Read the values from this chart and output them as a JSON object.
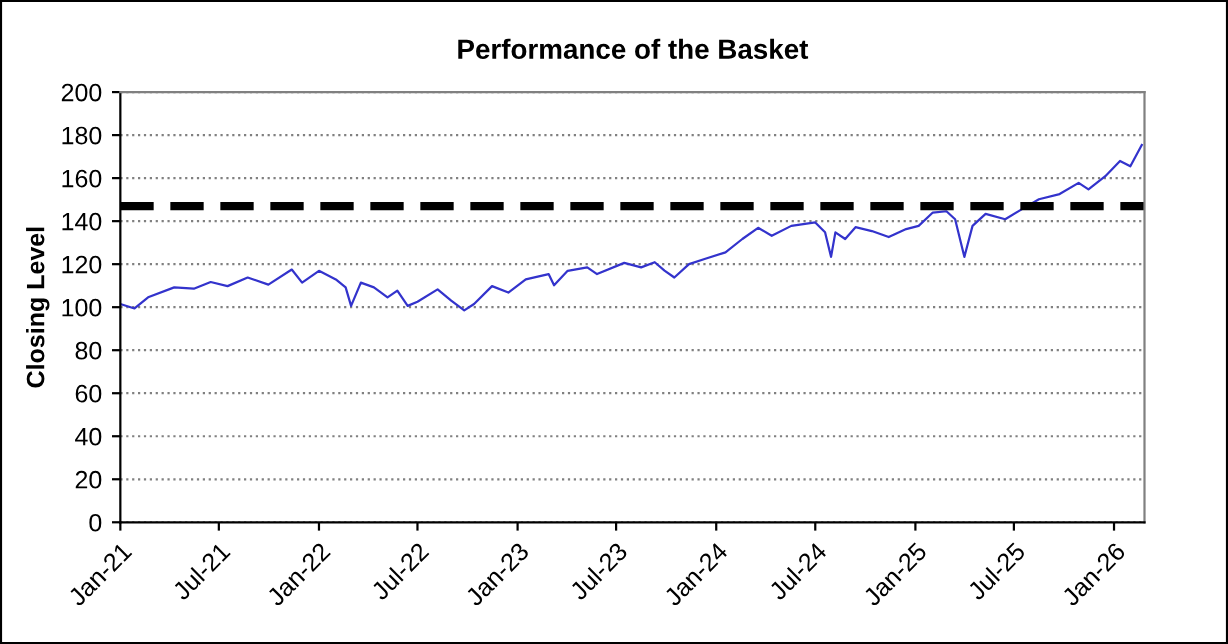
{
  "chart_data": {
    "type": "line",
    "title": "Performance of the Basket",
    "ylabel": "Closing Level",
    "x": [
      "2021-01-01",
      "2021-01-27",
      "2021-02-21",
      "2021-04-10",
      "2021-05-16",
      "2021-06-16",
      "2021-07-17",
      "2021-08-23",
      "2021-09-30",
      "2021-11-12",
      "2021-12-01",
      "2022-01-01",
      "2022-02-01",
      "2022-02-19",
      "2022-03-01",
      "2022-03-19",
      "2022-04-12",
      "2022-05-07",
      "2022-05-25",
      "2022-06-13",
      "2022-07-01",
      "2022-08-07",
      "2022-09-01",
      "2022-09-25",
      "2022-10-13",
      "2022-11-15",
      "2022-12-15",
      "2023-01-16",
      "2023-02-27",
      "2023-03-09",
      "2023-04-03",
      "2023-05-09",
      "2023-05-27",
      "2023-07-16",
      "2023-08-16",
      "2023-09-10",
      "2023-09-28",
      "2023-10-16",
      "2023-11-12",
      "2023-12-12",
      "2024-01-18",
      "2024-02-18",
      "2024-03-18",
      "2024-04-12",
      "2024-05-18",
      "2024-07-01",
      "2024-07-19",
      "2024-07-30",
      "2024-08-07",
      "2024-08-25",
      "2024-09-13",
      "2024-10-13",
      "2024-11-13",
      "2024-12-15",
      "2025-01-07",
      "2025-02-02",
      "2025-02-27",
      "2025-03-15",
      "2025-04-01",
      "2025-04-16",
      "2025-05-10",
      "2025-06-15",
      "2025-07-22",
      "2025-08-16",
      "2025-09-23",
      "2025-10-28",
      "2025-11-15",
      "2025-12-16",
      "2026-01-12",
      "2026-01-31",
      "2026-02-21"
    ],
    "series": [
      {
        "color": "#3333cc",
        "values": [
          101.5,
          99.4,
          104.6,
          109.2,
          108.6,
          111.7,
          109.8,
          113.8,
          110.5,
          117.5,
          111.4,
          116.9,
          112.9,
          109.2,
          100.6,
          111.4,
          109.2,
          104.6,
          107.7,
          100.6,
          102.5,
          108.3,
          103.1,
          98.5,
          101.5,
          109.8,
          106.8,
          112.9,
          115.4,
          110.2,
          116.9,
          118.5,
          115.4,
          120.6,
          118.5,
          120.9,
          117,
          113.8,
          120,
          122.5,
          125.5,
          131.7,
          136.9,
          133.2,
          137.8,
          139.4,
          134.8,
          123.4,
          134.8,
          131.7,
          137.2,
          135.4,
          132.6,
          136.3,
          137.8,
          144,
          144.6,
          140.9,
          123.4,
          137.8,
          143.4,
          140.9,
          146.5,
          150.2,
          152.6,
          157.8,
          154.8,
          160.9,
          168,
          165.5,
          175.4
        ]
      }
    ],
    "xlim": [
      "2021-01-01",
      "2026-02-26"
    ],
    "xticks": [
      {
        "value": "2021-01-01",
        "label": "Jan-21"
      },
      {
        "value": "2021-07-01",
        "label": "Jul-21"
      },
      {
        "value": "2022-01-01",
        "label": "Jan-22"
      },
      {
        "value": "2022-07-01",
        "label": "Jul-22"
      },
      {
        "value": "2023-01-01",
        "label": "Jan-23"
      },
      {
        "value": "2023-07-01",
        "label": "Jul-23"
      },
      {
        "value": "2024-01-01",
        "label": "Jan-24"
      },
      {
        "value": "2024-07-01",
        "label": "Jul-24"
      },
      {
        "value": "2025-01-01",
        "label": "Jan-25"
      },
      {
        "value": "2025-07-01",
        "label": "Jul-25"
      },
      {
        "value": "2026-01-01",
        "label": "Jan-26"
      }
    ],
    "ylim": [
      0,
      200
    ],
    "yticks": [
      0,
      20,
      40,
      60,
      80,
      100,
      120,
      140,
      160,
      180,
      200
    ],
    "grid": "y",
    "marker": "none",
    "line_style": "solid",
    "ref_lines": [
      {
        "axis": "y",
        "value": 147,
        "color": "#000000",
        "line_style": "dashed"
      }
    ]
  }
}
